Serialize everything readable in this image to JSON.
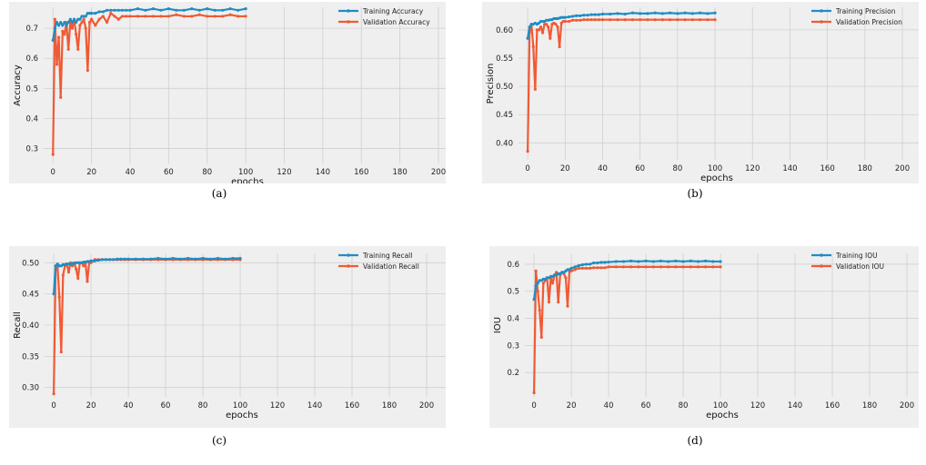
{
  "colors": {
    "train": "#1f8dc5",
    "val": "#f05a34",
    "bg": "#efefef",
    "grid": "#d0d0d0"
  },
  "chart_data": [
    {
      "type": "line",
      "caption": "(a)",
      "xlabel": "epochs",
      "ylabel": "Accuracy",
      "xlim": [
        -2,
        200
      ],
      "ylim": [
        0.25,
        0.77
      ],
      "xticks": [
        "0",
        "20",
        "40",
        "60",
        "80",
        "100",
        "120",
        "140",
        "160",
        "180",
        "200"
      ],
      "yticks": [
        "0.3",
        "0.4",
        "0.5",
        "0.6",
        "0.7"
      ],
      "ytick_values": [
        0.3,
        0.4,
        0.5,
        0.6,
        0.7
      ],
      "legend": "top-right",
      "series": [
        {
          "name": "Training Accuracy",
          "role": "train",
          "x": [
            0,
            1,
            2,
            3,
            4,
            5,
            6,
            7,
            8,
            9,
            10,
            11,
            12,
            13,
            14,
            15,
            16,
            17,
            18,
            19,
            20,
            22,
            24,
            26,
            28,
            30,
            32,
            34,
            36,
            38,
            40,
            44,
            48,
            52,
            56,
            60,
            64,
            68,
            72,
            76,
            80,
            84,
            88,
            92,
            96,
            100
          ],
          "values": [
            0.66,
            0.7,
            0.72,
            0.71,
            0.72,
            0.71,
            0.72,
            0.71,
            0.72,
            0.73,
            0.72,
            0.73,
            0.72,
            0.73,
            0.73,
            0.74,
            0.74,
            0.74,
            0.75,
            0.75,
            0.75,
            0.75,
            0.755,
            0.755,
            0.76,
            0.76,
            0.76,
            0.76,
            0.76,
            0.76,
            0.76,
            0.765,
            0.76,
            0.765,
            0.76,
            0.765,
            0.76,
            0.76,
            0.765,
            0.76,
            0.765,
            0.76,
            0.76,
            0.765,
            0.76,
            0.765
          ]
        },
        {
          "name": "Validation Accuracy",
          "role": "val",
          "x": [
            0,
            1,
            2,
            3,
            4,
            5,
            6,
            7,
            8,
            9,
            10,
            11,
            12,
            13,
            14,
            15,
            16,
            17,
            18,
            19,
            20,
            22,
            24,
            26,
            28,
            30,
            32,
            34,
            36,
            38,
            40,
            44,
            48,
            52,
            56,
            60,
            64,
            68,
            72,
            76,
            80,
            84,
            88,
            92,
            96,
            100
          ],
          "values": [
            0.28,
            0.73,
            0.58,
            0.67,
            0.47,
            0.69,
            0.68,
            0.72,
            0.63,
            0.72,
            0.7,
            0.73,
            0.68,
            0.63,
            0.71,
            0.72,
            0.73,
            0.7,
            0.56,
            0.72,
            0.73,
            0.71,
            0.73,
            0.74,
            0.72,
            0.75,
            0.74,
            0.73,
            0.74,
            0.74,
            0.74,
            0.74,
            0.74,
            0.74,
            0.74,
            0.74,
            0.745,
            0.74,
            0.74,
            0.745,
            0.74,
            0.74,
            0.74,
            0.745,
            0.74,
            0.74
          ]
        }
      ]
    },
    {
      "type": "line",
      "caption": "(b)",
      "xlabel": "epochs",
      "ylabel": "Precision",
      "xlim": [
        -2,
        200
      ],
      "ylim": [
        0.37,
        0.64
      ],
      "xticks": [
        "0",
        "20",
        "40",
        "60",
        "80",
        "100",
        "120",
        "140",
        "160",
        "180",
        "200"
      ],
      "yticks": [
        "0.40",
        "0.45",
        "0.50",
        "0.55",
        "0.60"
      ],
      "ytick_values": [
        0.4,
        0.45,
        0.5,
        0.55,
        0.6
      ],
      "legend": "top-right",
      "series": [
        {
          "name": "Training Precision",
          "role": "train",
          "x": [
            0,
            1,
            2,
            3,
            4,
            5,
            6,
            7,
            8,
            9,
            10,
            11,
            12,
            13,
            14,
            15,
            16,
            17,
            18,
            19,
            20,
            22,
            24,
            26,
            28,
            30,
            32,
            34,
            36,
            38,
            40,
            44,
            48,
            52,
            56,
            60,
            64,
            68,
            72,
            76,
            80,
            84,
            88,
            92,
            96,
            100
          ],
          "values": [
            0.585,
            0.605,
            0.61,
            0.61,
            0.612,
            0.61,
            0.612,
            0.615,
            0.615,
            0.615,
            0.617,
            0.617,
            0.618,
            0.618,
            0.62,
            0.62,
            0.62,
            0.621,
            0.622,
            0.622,
            0.622,
            0.623,
            0.624,
            0.625,
            0.625,
            0.626,
            0.626,
            0.627,
            0.627,
            0.627,
            0.628,
            0.628,
            0.629,
            0.628,
            0.63,
            0.629,
            0.629,
            0.63,
            0.629,
            0.63,
            0.629,
            0.63,
            0.629,
            0.63,
            0.629,
            0.63
          ]
        },
        {
          "name": "Validation Precision",
          "role": "val",
          "x": [
            0,
            1,
            2,
            3,
            4,
            5,
            6,
            7,
            8,
            9,
            10,
            11,
            12,
            13,
            14,
            15,
            16,
            17,
            18,
            19,
            20,
            22,
            24,
            26,
            28,
            30,
            32,
            34,
            36,
            38,
            40,
            44,
            48,
            52,
            56,
            60,
            64,
            68,
            72,
            76,
            80,
            84,
            88,
            92,
            96,
            100
          ],
          "values": [
            0.385,
            0.595,
            0.61,
            0.57,
            0.495,
            0.6,
            0.6,
            0.605,
            0.595,
            0.61,
            0.61,
            0.605,
            0.585,
            0.61,
            0.612,
            0.61,
            0.605,
            0.57,
            0.612,
            0.615,
            0.615,
            0.615,
            0.617,
            0.617,
            0.617,
            0.618,
            0.618,
            0.618,
            0.618,
            0.618,
            0.618,
            0.618,
            0.618,
            0.618,
            0.618,
            0.618,
            0.618,
            0.618,
            0.618,
            0.618,
            0.618,
            0.618,
            0.618,
            0.618,
            0.618,
            0.618
          ]
        }
      ]
    },
    {
      "type": "line",
      "caption": "(c)",
      "xlabel": "epochs",
      "ylabel": "Recall",
      "xlim": [
        -2,
        200
      ],
      "ylim": [
        0.285,
        0.515
      ],
      "xticks": [
        "0",
        "20",
        "40",
        "60",
        "80",
        "100",
        "120",
        "140",
        "160",
        "180",
        "200"
      ],
      "yticks": [
        "0.30",
        "0.35",
        "0.40",
        "0.45",
        "0.50"
      ],
      "ytick_values": [
        0.3,
        0.35,
        0.4,
        0.45,
        0.5
      ],
      "legend": "top-right",
      "series": [
        {
          "name": "Training Recall",
          "role": "train",
          "x": [
            0,
            1,
            2,
            3,
            4,
            5,
            6,
            7,
            8,
            9,
            10,
            11,
            12,
            13,
            14,
            15,
            16,
            17,
            18,
            19,
            20,
            22,
            24,
            26,
            28,
            30,
            32,
            34,
            36,
            38,
            40,
            44,
            48,
            52,
            56,
            60,
            64,
            68,
            72,
            76,
            80,
            84,
            88,
            92,
            96,
            100
          ],
          "values": [
            0.45,
            0.495,
            0.498,
            0.495,
            0.495,
            0.497,
            0.497,
            0.498,
            0.498,
            0.498,
            0.499,
            0.499,
            0.5,
            0.5,
            0.5,
            0.5,
            0.501,
            0.501,
            0.502,
            0.502,
            0.503,
            0.503,
            0.504,
            0.505,
            0.505,
            0.505,
            0.505,
            0.506,
            0.506,
            0.506,
            0.506,
            0.506,
            0.506,
            0.506,
            0.507,
            0.506,
            0.507,
            0.506,
            0.507,
            0.506,
            0.507,
            0.506,
            0.507,
            0.506,
            0.507,
            0.507
          ]
        },
        {
          "name": "Validation Recall",
          "role": "val",
          "x": [
            0,
            1,
            2,
            3,
            4,
            5,
            6,
            7,
            8,
            9,
            10,
            11,
            12,
            13,
            14,
            15,
            16,
            17,
            18,
            19,
            20,
            22,
            24,
            26,
            28,
            30,
            32,
            34,
            36,
            38,
            40,
            44,
            48,
            52,
            56,
            60,
            64,
            68,
            72,
            76,
            80,
            84,
            88,
            92,
            96,
            100
          ],
          "values": [
            0.29,
            0.49,
            0.495,
            0.445,
            0.357,
            0.48,
            0.495,
            0.498,
            0.485,
            0.5,
            0.495,
            0.5,
            0.49,
            0.475,
            0.5,
            0.5,
            0.495,
            0.5,
            0.47,
            0.5,
            0.5,
            0.505,
            0.505,
            0.505,
            0.505,
            0.505,
            0.505,
            0.505,
            0.505,
            0.505,
            0.505,
            0.505,
            0.505,
            0.505,
            0.505,
            0.505,
            0.505,
            0.505,
            0.505,
            0.505,
            0.505,
            0.505,
            0.505,
            0.505,
            0.505,
            0.505
          ]
        }
      ]
    },
    {
      "type": "line",
      "caption": "(d)",
      "xlabel": "epochs",
      "ylabel": "IOU",
      "xlim": [
        -2,
        200
      ],
      "ylim": [
        0.11,
        0.64
      ],
      "xticks": [
        "0",
        "20",
        "40",
        "60",
        "80",
        "100",
        "120",
        "140",
        "160",
        "180",
        "200"
      ],
      "yticks": [
        "0.2",
        "0.3",
        "0.4",
        "0.5",
        "0.6"
      ],
      "ytick_values": [
        0.2,
        0.3,
        0.4,
        0.5,
        0.6
      ],
      "legend": "top-right",
      "series": [
        {
          "name": "Training IOU",
          "role": "train",
          "x": [
            0,
            1,
            2,
            3,
            4,
            5,
            6,
            7,
            8,
            9,
            10,
            11,
            12,
            13,
            14,
            15,
            16,
            17,
            18,
            19,
            20,
            22,
            24,
            26,
            28,
            30,
            32,
            34,
            36,
            38,
            40,
            44,
            48,
            52,
            56,
            60,
            64,
            68,
            72,
            76,
            80,
            84,
            88,
            92,
            96,
            100
          ],
          "values": [
            0.47,
            0.52,
            0.53,
            0.54,
            0.54,
            0.545,
            0.545,
            0.55,
            0.55,
            0.555,
            0.555,
            0.56,
            0.56,
            0.565,
            0.565,
            0.57,
            0.57,
            0.575,
            0.58,
            0.58,
            0.585,
            0.59,
            0.595,
            0.598,
            0.6,
            0.6,
            0.605,
            0.605,
            0.607,
            0.607,
            0.608,
            0.61,
            0.61,
            0.612,
            0.61,
            0.612,
            0.61,
            0.612,
            0.61,
            0.612,
            0.61,
            0.612,
            0.61,
            0.612,
            0.61,
            0.61
          ]
        },
        {
          "name": "Validation IOU",
          "role": "val",
          "x": [
            0,
            1,
            2,
            3,
            4,
            5,
            6,
            7,
            8,
            9,
            10,
            11,
            12,
            13,
            14,
            15,
            16,
            17,
            18,
            19,
            20,
            22,
            24,
            26,
            28,
            30,
            32,
            34,
            36,
            38,
            40,
            44,
            48,
            52,
            56,
            60,
            64,
            68,
            72,
            76,
            80,
            84,
            88,
            92,
            96,
            100
          ],
          "values": [
            0.125,
            0.575,
            0.5,
            0.43,
            0.33,
            0.53,
            0.54,
            0.55,
            0.46,
            0.55,
            0.53,
            0.56,
            0.57,
            0.46,
            0.56,
            0.57,
            0.565,
            0.55,
            0.445,
            0.575,
            0.575,
            0.58,
            0.585,
            0.585,
            0.585,
            0.585,
            0.587,
            0.587,
            0.587,
            0.587,
            0.59,
            0.59,
            0.59,
            0.59,
            0.59,
            0.59,
            0.59,
            0.59,
            0.59,
            0.59,
            0.59,
            0.59,
            0.59,
            0.59,
            0.59,
            0.59
          ]
        }
      ]
    }
  ]
}
